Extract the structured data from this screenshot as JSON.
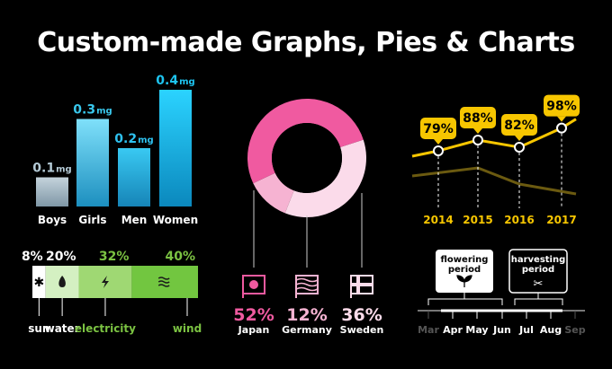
{
  "page": {
    "title": "Custom-made Graphs, Pies & Charts"
  },
  "chart_data": [
    {
      "type": "bar",
      "categories": [
        "Boys",
        "Girls",
        "Men",
        "Women"
      ],
      "values": [
        0.1,
        0.3,
        0.2,
        0.4
      ],
      "value_labels": [
        "0.1",
        "0.3",
        "0.2",
        "0.4"
      ],
      "unit": "mg",
      "colors": [
        "#b4cad6",
        "#39c7ec",
        "#2ec1ef",
        "#1ec4f0"
      ]
    },
    {
      "type": "bar",
      "orientation": "stacked-horizontal",
      "categories": [
        "sun",
        "water",
        "electricity",
        "wind"
      ],
      "values": [
        8,
        20,
        32,
        40
      ],
      "value_labels": [
        "8%",
        "20%",
        "32%",
        "40%"
      ],
      "icons": [
        "sun-icon",
        "water-drop-icon",
        "lightning-icon",
        "wind-icon"
      ],
      "colors": [
        "#ffffff",
        "#d4f0c2",
        "#9fd873",
        "#72c640"
      ],
      "label_colors": [
        "#ffffff",
        "#ffffff",
        "#7bc242",
        "#7bc242"
      ]
    },
    {
      "type": "pie",
      "style": "donut",
      "categories": [
        "Japan",
        "Germany",
        "Sweden"
      ],
      "values": [
        52,
        12,
        36
      ],
      "value_labels": [
        "52%",
        "12%",
        "36%"
      ],
      "icons": [
        "japan-flag-icon",
        "germany-flag-icon",
        "sweden-flag-icon"
      ],
      "colors": [
        "#f05aa0",
        "#f6b3d2",
        "#fbdbea"
      ]
    },
    {
      "type": "line",
      "x": [
        "2014",
        "2015",
        "2016",
        "2017"
      ],
      "series": [
        {
          "values": [
            79,
            88,
            82,
            98
          ],
          "labels": [
            "79%",
            "88%",
            "82%",
            "98%"
          ],
          "color": "#f7c600"
        }
      ],
      "background_line_color": "#6b5a10"
    },
    {
      "type": "timeline",
      "months": [
        "Mar",
        "Apr",
        "May",
        "Jun",
        "Jul",
        "Aug",
        "Sep"
      ],
      "month_colors": [
        "#555555",
        "#ffffff",
        "#ffffff",
        "#ffffff",
        "#ffffff",
        "#ffffff",
        "#555555"
      ],
      "periods": [
        {
          "label": "flowering\nperiod",
          "start": "Mar",
          "end": "Jun",
          "icon": "sprout-icon"
        },
        {
          "label": "harvesting\nperiod",
          "start": "Jul",
          "end": "Aug",
          "icon": "scissors-icon"
        }
      ]
    }
  ]
}
